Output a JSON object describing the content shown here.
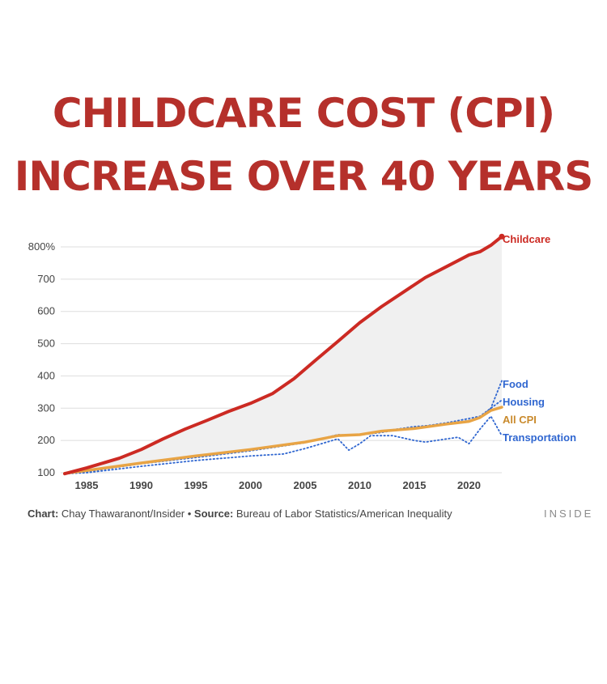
{
  "title": {
    "line1": "CHILDCARE COST (CPI)",
    "line2": "INCREASE OVER 40 YEARS"
  },
  "footer": {
    "chart_label": "Chart:",
    "chart_credit": " Chay Thawaranont/Insider • ",
    "source_label": "Source:",
    "source_text": " Bureau of Labor Statistics/American Inequality",
    "brand": "INSIDE"
  },
  "chart_data": {
    "type": "line",
    "xlim": [
      1983,
      2023
    ],
    "ylim": [
      100,
      800
    ],
    "y_ticks": [
      100,
      200,
      300,
      400,
      500,
      600,
      700,
      800
    ],
    "y_tick_labels": [
      "100",
      "200",
      "300",
      "400",
      "500",
      "600",
      "700",
      "800%"
    ],
    "x_ticks": [
      1985,
      1990,
      1995,
      2000,
      2005,
      2010,
      2015,
      2020
    ],
    "x_tick_labels": [
      "1985",
      "1990",
      "1995",
      "2000",
      "2005",
      "2010",
      "2015",
      "2020"
    ],
    "grid": true,
    "legend": "none (series labeled at right end)",
    "shaded_area": "between Childcare and All CPI",
    "series": [
      {
        "name": "Childcare",
        "color": "#cc2a23",
        "style": "solid-thick",
        "points": [
          [
            1983,
            97
          ],
          [
            1985,
            115
          ],
          [
            1988,
            145
          ],
          [
            1990,
            172
          ],
          [
            1992,
            205
          ],
          [
            1994,
            235
          ],
          [
            1996,
            262
          ],
          [
            1998,
            290
          ],
          [
            2000,
            315
          ],
          [
            2002,
            345
          ],
          [
            2004,
            392
          ],
          [
            2006,
            450
          ],
          [
            2008,
            507
          ],
          [
            2010,
            565
          ],
          [
            2012,
            615
          ],
          [
            2014,
            660
          ],
          [
            2016,
            705
          ],
          [
            2018,
            740
          ],
          [
            2020,
            775
          ],
          [
            2021,
            785
          ],
          [
            2022,
            805
          ],
          [
            2023,
            832
          ]
        ]
      },
      {
        "name": "Food",
        "color": "#2f66d0",
        "style": "dotted",
        "points": [
          [
            1983,
            97
          ],
          [
            1985,
            103
          ],
          [
            1990,
            128
          ],
          [
            1995,
            147
          ],
          [
            2000,
            168
          ],
          [
            2005,
            193
          ],
          [
            2008,
            218
          ],
          [
            2009,
            216
          ],
          [
            2010,
            218
          ],
          [
            2012,
            228
          ],
          [
            2015,
            243
          ],
          [
            2018,
            250
          ],
          [
            2020,
            262
          ],
          [
            2021,
            270
          ],
          [
            2022,
            300
          ],
          [
            2023,
            385
          ]
        ]
      },
      {
        "name": "Housing",
        "color": "#2f66d0",
        "style": "dotted",
        "points": [
          [
            1983,
            97
          ],
          [
            1985,
            105
          ],
          [
            1990,
            130
          ],
          [
            1995,
            148
          ],
          [
            2000,
            170
          ],
          [
            2005,
            195
          ],
          [
            2008,
            215
          ],
          [
            2010,
            217
          ],
          [
            2012,
            225
          ],
          [
            2015,
            240
          ],
          [
            2018,
            255
          ],
          [
            2020,
            268
          ],
          [
            2021,
            275
          ],
          [
            2022,
            300
          ],
          [
            2023,
            325
          ]
        ]
      },
      {
        "name": "All CPI",
        "color": "#e8a445",
        "style": "solid",
        "points": [
          [
            1983,
            98
          ],
          [
            1985,
            107
          ],
          [
            1990,
            130
          ],
          [
            1995,
            152
          ],
          [
            2000,
            172
          ],
          [
            2005,
            195
          ],
          [
            2008,
            215
          ],
          [
            2010,
            218
          ],
          [
            2012,
            229
          ],
          [
            2015,
            237
          ],
          [
            2018,
            251
          ],
          [
            2020,
            259
          ],
          [
            2021,
            271
          ],
          [
            2022,
            293
          ],
          [
            2023,
            303
          ]
        ]
      },
      {
        "name": "Transportation",
        "color": "#2f66d0",
        "style": "dotted",
        "points": [
          [
            1983,
            97
          ],
          [
            1985,
            100
          ],
          [
            1990,
            120
          ],
          [
            1995,
            138
          ],
          [
            2000,
            152
          ],
          [
            2003,
            158
          ],
          [
            2005,
            175
          ],
          [
            2008,
            205
          ],
          [
            2009,
            170
          ],
          [
            2010,
            190
          ],
          [
            2011,
            215
          ],
          [
            2013,
            215
          ],
          [
            2015,
            200
          ],
          [
            2016,
            195
          ],
          [
            2018,
            205
          ],
          [
            2019,
            210
          ],
          [
            2020,
            190
          ],
          [
            2021,
            235
          ],
          [
            2022,
            275
          ],
          [
            2023,
            215
          ]
        ]
      }
    ]
  }
}
